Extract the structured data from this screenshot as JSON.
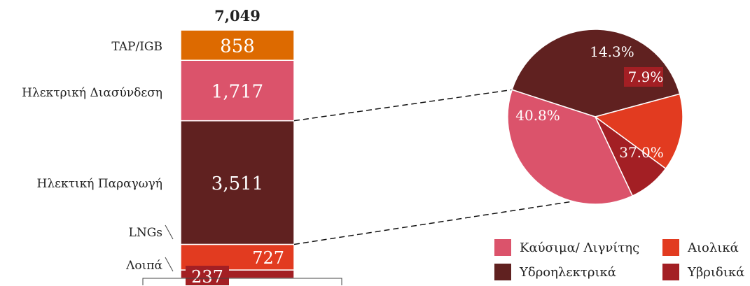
{
  "chart_data": [
    {
      "type": "bar",
      "stacked": true,
      "total_label": "7,049",
      "categories": [
        ""
      ],
      "series": [
        {
          "name": "Λοιπά",
          "values": [
            237
          ],
          "value_label": "237",
          "color": "#a31f24"
        },
        {
          "name": "LNGs",
          "values": [
            727
          ],
          "value_label": "727",
          "color": "#e23b20"
        },
        {
          "name": "Ηλεκτική Παραγωγή",
          "values": [
            3511
          ],
          "value_label": "3,511",
          "color": "#602120"
        },
        {
          "name": "Ηλεκτρική Διασύνδεση",
          "values": [
            1717
          ],
          "value_label": "1,717",
          "color": "#db536b"
        },
        {
          "name": "TAP/IGB",
          "values": [
            858
          ],
          "value_label": "858",
          "color": "#dd6a00"
        }
      ],
      "grid": false
    },
    {
      "type": "pie",
      "slices": [
        {
          "name": "Υδροηλεκτρικά",
          "value": 40.8,
          "label": "40.8%",
          "color": "#602120"
        },
        {
          "name": "Αιολικά",
          "value": 14.3,
          "label": "14.3%",
          "color": "#e23b20"
        },
        {
          "name": "Υβριδικά",
          "value": 7.9,
          "label": "7.9%",
          "color": "#a31f24"
        },
        {
          "name": "Καύσιμα/ Λιγνίτης",
          "value": 37.0,
          "label": "37.0%",
          "color": "#db536b"
        }
      ],
      "legend": {
        "position": "bottom-right",
        "entries": [
          {
            "label": "Καύσιμα/ Λιγνίτης",
            "color": "#db536b"
          },
          {
            "label": "Αιολικά",
            "color": "#e23b20"
          },
          {
            "label": "Υδροηλεκτρικά",
            "color": "#602120"
          },
          {
            "label": "Υβριδικά",
            "color": "#a31f24"
          }
        ]
      }
    }
  ]
}
